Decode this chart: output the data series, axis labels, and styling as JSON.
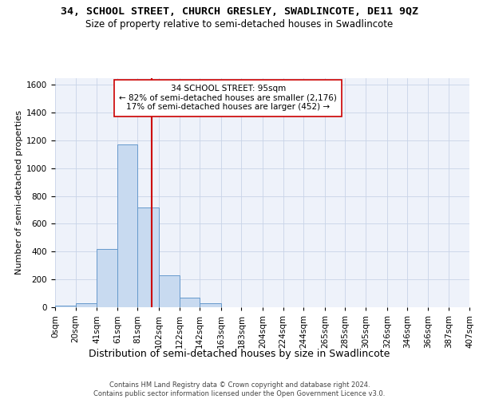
{
  "title": "34, SCHOOL STREET, CHURCH GRESLEY, SWADLINCOTE, DE11 9QZ",
  "subtitle": "Size of property relative to semi-detached houses in Swadlincote",
  "xlabel": "Distribution of semi-detached houses by size in Swadlincote",
  "ylabel": "Number of semi-detached properties",
  "footer_line1": "Contains HM Land Registry data © Crown copyright and database right 2024.",
  "footer_line2": "Contains public sector information licensed under the Open Government Licence v3.0.",
  "annotation_title": "34 SCHOOL STREET: 95sqm",
  "annotation_line2": "← 82% of semi-detached houses are smaller (2,176)",
  "annotation_line3": "17% of semi-detached houses are larger (452) →",
  "bin_edges": [
    0,
    20,
    41,
    61,
    81,
    102,
    122,
    142,
    163,
    183,
    204,
    224,
    244,
    265,
    285,
    305,
    326,
    346,
    366,
    387,
    407
  ],
  "bin_labels": [
    "0sqm",
    "20sqm",
    "41sqm",
    "61sqm",
    "81sqm",
    "102sqm",
    "122sqm",
    "142sqm",
    "163sqm",
    "183sqm",
    "204sqm",
    "224sqm",
    "244sqm",
    "265sqm",
    "285sqm",
    "305sqm",
    "326sqm",
    "346sqm",
    "366sqm",
    "387sqm",
    "407sqm"
  ],
  "bar_counts": [
    10,
    30,
    420,
    1170,
    720,
    230,
    70,
    30,
    0,
    0,
    0,
    0,
    0,
    0,
    0,
    0,
    0,
    0,
    0,
    0
  ],
  "bar_color": "#c8daf0",
  "bar_edge_color": "#6699cc",
  "vline_x": 95,
  "vline_color": "#cc0000",
  "grid_color": "#c8d4e8",
  "bg_color": "#eef2fa",
  "ylim_max": 1650,
  "yticks": [
    0,
    200,
    400,
    600,
    800,
    1000,
    1200,
    1400,
    1600
  ],
  "title_fontsize": 9.5,
  "subtitle_fontsize": 8.5,
  "xlabel_fontsize": 9,
  "ylabel_fontsize": 8,
  "tick_fontsize": 7.5,
  "ann_fontsize": 7.5,
  "footer_fontsize": 6
}
